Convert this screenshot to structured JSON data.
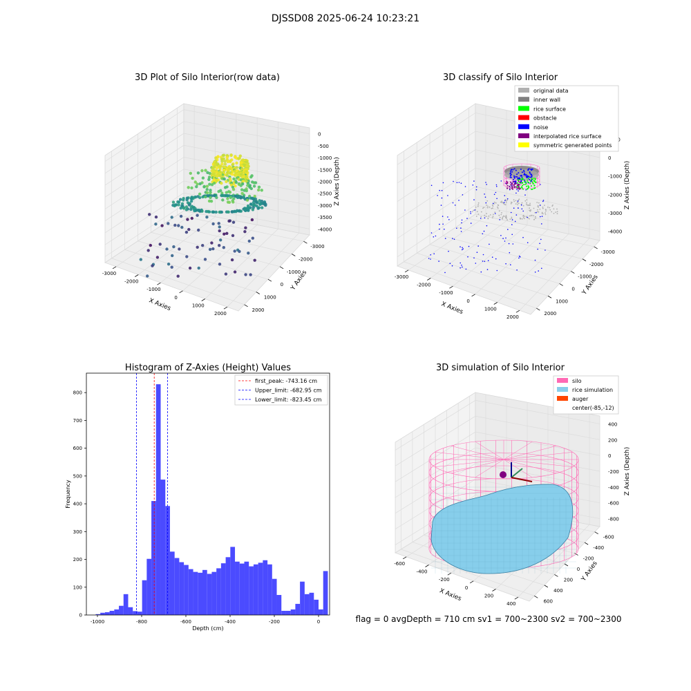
{
  "figure": {
    "suptitle": "DJSSD08 2025-06-24 10:23:21",
    "footer": "flag = 0     avgDepth = 710 cm  sv1 = 700~2300  sv2 = 700~2300"
  },
  "colors": {
    "original_data": "#b0b0b0",
    "inner_wall": "#808080",
    "rice_surface": "#00ff00",
    "obstacle": "#ff0000",
    "noise": "#0000ff",
    "interpolated_rice_surface": "#800080",
    "symmetric_generated_points": "#ffff00",
    "histogram_bar": "#4b4bff",
    "silo": "#ff69b4",
    "rice_simulation": "#87ceeb",
    "auger": "#ff4500"
  },
  "chart_data": [
    {
      "type": "scatter",
      "title": "3D Plot of Silo Interior(row data)",
      "xlabel": "X Axies",
      "ylabel": "Y Axies",
      "zlabel": "Z Axies (Depth)",
      "xticks": [
        "-3000",
        "-2000",
        "-1000",
        "0",
        "1000",
        "2000"
      ],
      "yticks": [
        "-3000",
        "-2000",
        "-1000",
        "0",
        "1000",
        "2000"
      ],
      "zticks": [
        "0",
        "-500",
        "-1000",
        "-1500",
        "-2000",
        "-2500",
        "-3000",
        "-3500",
        "-4000"
      ],
      "colormap": "viridis"
    },
    {
      "type": "scatter",
      "title": "3D classify of Silo Interior",
      "xlabel": "X Axies",
      "ylabel": "Y Axies",
      "zlabel": "Z Axies (Depth)",
      "xticks": [
        "-3000",
        "-2000",
        "-1000",
        "0",
        "1000",
        "2000"
      ],
      "yticks": [
        "-3000",
        "-2000",
        "-1000",
        "0",
        "1000",
        "2000"
      ],
      "zticks": [
        "1000",
        "0",
        "-1000",
        "-2000",
        "-3000",
        "-4000"
      ],
      "legend_position": "top-right",
      "legend": [
        "original data",
        "inner wall",
        "rice surface",
        "obstacle",
        "noise",
        "interpolated rice surface",
        "symmetric generated points"
      ]
    },
    {
      "type": "bar",
      "title": "Histogram of Z-Axies (Height) Values",
      "xlabel": "Depth (cm)",
      "ylabel": "Frequency",
      "xlim": [
        -1050,
        50
      ],
      "ylim": [
        0,
        870
      ],
      "xticks": [
        "-1000",
        "-800",
        "-600",
        "-400",
        "-200",
        "0"
      ],
      "yticks": [
        "0",
        "100",
        "200",
        "300",
        "400",
        "500",
        "600",
        "700",
        "800"
      ],
      "bin_width": 21,
      "bin_start": -1008,
      "values": [
        3,
        8,
        10,
        15,
        20,
        33,
        75,
        28,
        14,
        12,
        125,
        202,
        410,
        830,
        487,
        392,
        228,
        205,
        190,
        180,
        165,
        155,
        152,
        162,
        148,
        155,
        168,
        186,
        208,
        245,
        192,
        185,
        192,
        175,
        182,
        188,
        197,
        182,
        130,
        72,
        15,
        15,
        20,
        40,
        120,
        75,
        80,
        55,
        20,
        158
      ],
      "legend_position": "top-right",
      "lines": [
        {
          "label": "first_peak: -743.16 cm",
          "x": -743.16,
          "color": "#ff0000"
        },
        {
          "label": "Upper_limit: -682.95 cm",
          "x": -682.95,
          "color": "#0000ff"
        },
        {
          "label": "Lower_limit: -823.45 cm",
          "x": -823.45,
          "color": "#0000ff"
        }
      ]
    },
    {
      "type": "surface",
      "title": "3D simulation of Silo Interior",
      "xlabel": "X Axies",
      "ylabel": "Y Axies",
      "zlabel": "Z Axies (Depth)",
      "xticks": [
        "-600",
        "-400",
        "-200",
        "0",
        "200",
        "400"
      ],
      "yticks": [
        "-600",
        "-400",
        "-200",
        "0",
        "200",
        "400",
        "600"
      ],
      "zticks": [
        "400",
        "200",
        "0",
        "-200",
        "-400",
        "-600",
        "-800"
      ],
      "legend_position": "top-right",
      "legend": [
        "silo",
        "rice simulation",
        "auger",
        "center(-85,-12)"
      ]
    }
  ]
}
